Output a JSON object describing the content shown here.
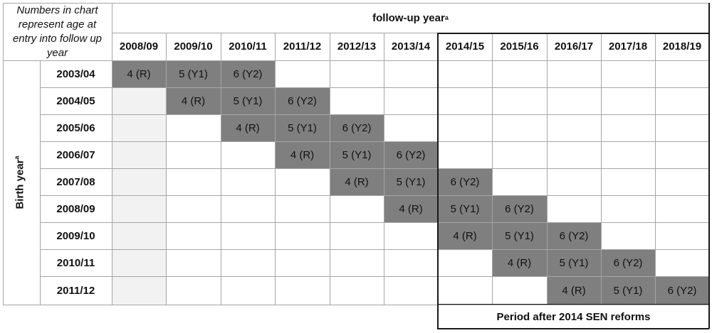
{
  "corner_note": "Numbers in chart represent age at entry into follow up year",
  "follow_up_label": "follow-up year",
  "birth_label": "Birth year",
  "superscript": "a",
  "follow_up_years": [
    "2008/09",
    "2009/10",
    "2010/11",
    "2011/12",
    "2012/13",
    "2013/14",
    "2014/15",
    "2015/16",
    "2016/17",
    "2017/18",
    "2018/19"
  ],
  "birth_years": [
    "2003/04",
    "2004/05",
    "2005/06",
    "2006/07",
    "2007/08",
    "2008/09",
    "2009/10",
    "2010/11",
    "2011/12"
  ],
  "grid": [
    [
      "4 (R)",
      "5 (Y1)",
      "6 (Y2)",
      "",
      "",
      "",
      "",
      "",
      "",
      "",
      ""
    ],
    [
      "",
      "4 (R)",
      "5 (Y1)",
      "6 (Y2)",
      "",
      "",
      "",
      "",
      "",
      "",
      ""
    ],
    [
      "",
      "",
      "4 (R)",
      "5 (Y1)",
      "6 (Y2)",
      "",
      "",
      "",
      "",
      "",
      ""
    ],
    [
      "",
      "",
      "",
      "4 (R)",
      "5 (Y1)",
      "6 (Y2)",
      "",
      "",
      "",
      "",
      ""
    ],
    [
      "",
      "",
      "",
      "",
      "4 (R)",
      "5 (Y1)",
      "6 (Y2)",
      "",
      "",
      "",
      ""
    ],
    [
      "",
      "",
      "",
      "",
      "",
      "4 (R)",
      "5 (Y1)",
      "6 (Y2)",
      "",
      "",
      ""
    ],
    [
      "",
      "",
      "",
      "",
      "",
      "",
      "4 (R)",
      "5 (Y1)",
      "6 (Y2)",
      "",
      ""
    ],
    [
      "",
      "",
      "",
      "",
      "",
      "",
      "",
      "4 (R)",
      "5 (Y1)",
      "6 (Y2)",
      ""
    ],
    [
      "",
      "",
      "",
      "",
      "",
      "",
      "",
      "",
      "4 (R)",
      "5 (Y1)",
      "6 (Y2)"
    ]
  ],
  "reform_period_label": "Period after 2014 SEN reforms",
  "colors": {
    "filled": "#7f7f7f",
    "blank": "#f2f2f2",
    "grid": "#a6a6a6",
    "border": "#1a1a1a"
  }
}
